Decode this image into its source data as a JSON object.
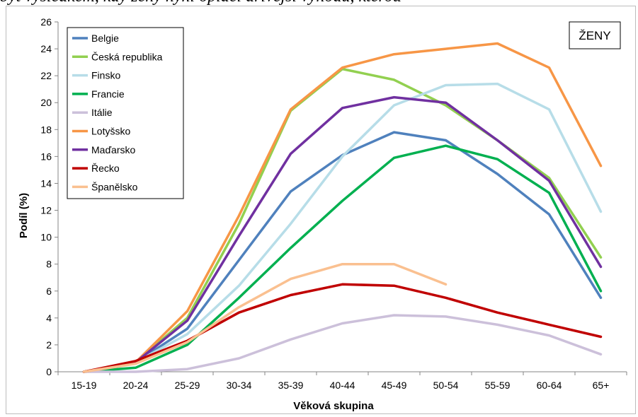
{
  "caption": "byt výsledkem, kdy ženy nyní oplácí dřívější výhodu, kterou",
  "badge": "ŽENY",
  "chart_data": {
    "type": "line",
    "categories": [
      "15-19",
      "20-24",
      "25-29",
      "30-34",
      "35-39",
      "40-44",
      "45-49",
      "50-54",
      "55-59",
      "60-64",
      "65+"
    ],
    "xlabel": "Věková skupina",
    "ylabel": "Podíl (%)",
    "ylim": [
      0,
      26
    ],
    "yticks": [
      0,
      2,
      4,
      6,
      8,
      10,
      12,
      14,
      16,
      18,
      20,
      22,
      24,
      26
    ],
    "grid": false,
    "legend_position": "top-left",
    "series": [
      {
        "name": "Belgie",
        "color": "#4f81bd",
        "values": [
          0,
          0.7,
          3.2,
          8.3,
          13.4,
          16.1,
          17.8,
          17.2,
          14.7,
          11.7,
          5.5
        ]
      },
      {
        "name": "Česká republika",
        "color": "#92d050",
        "values": [
          0,
          0.7,
          4.0,
          11.0,
          19.4,
          22.5,
          21.7,
          19.8,
          17.2,
          14.4,
          8.5
        ]
      },
      {
        "name": "Finsko",
        "color": "#b7dde8",
        "values": [
          0,
          0.7,
          2.8,
          6.4,
          11.0,
          16.0,
          19.8,
          21.3,
          21.4,
          19.5,
          11.9
        ]
      },
      {
        "name": "Francie",
        "color": "#00b050",
        "values": [
          0,
          0.3,
          2.0,
          5.5,
          9.2,
          12.7,
          15.9,
          16.8,
          15.8,
          13.3,
          6.0
        ]
      },
      {
        "name": "Itálie",
        "color": "#ccc0da",
        "values": [
          0,
          0,
          0.2,
          1.0,
          2.4,
          3.6,
          4.2,
          4.1,
          3.5,
          2.7,
          1.3
        ]
      },
      {
        "name": "Lotyšsko",
        "color": "#f79646",
        "values": [
          0,
          0.7,
          4.5,
          11.6,
          19.5,
          22.6,
          23.6,
          24.0,
          24.4,
          22.6,
          15.3
        ]
      },
      {
        "name": "Maďarsko",
        "color": "#7030a0",
        "values": [
          0,
          0.7,
          3.8,
          10.1,
          16.2,
          19.6,
          20.4,
          20.0,
          17.2,
          14.2,
          7.8
        ]
      },
      {
        "name": "Řecko",
        "color": "#c00000",
        "values": [
          0,
          0.8,
          2.3,
          4.4,
          5.7,
          6.5,
          6.4,
          5.5,
          4.4,
          3.5,
          2.6
        ]
      },
      {
        "name": "Španělsko",
        "color": "#fac090",
        "values": [
          0,
          0.6,
          2.2,
          4.8,
          6.9,
          8.0,
          8.0,
          6.5,
          null,
          null,
          null
        ]
      }
    ]
  }
}
